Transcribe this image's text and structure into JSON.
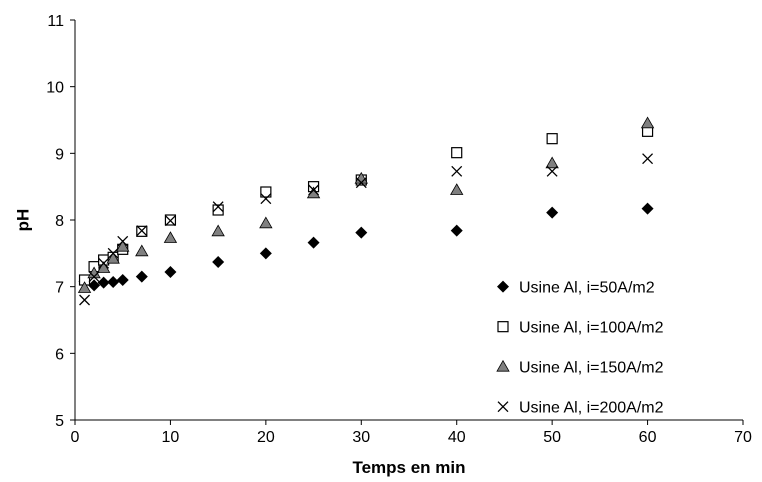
{
  "chart_data": {
    "type": "scatter",
    "title": "",
    "xlabel": "Temps en min",
    "ylabel": "pH",
    "xlim": [
      0,
      70
    ],
    "ylim": [
      5,
      11
    ],
    "xticks": [
      "0",
      "10",
      "20",
      "30",
      "40",
      "50",
      "60",
      "70"
    ],
    "yticks": [
      "5",
      "6",
      "7",
      "8",
      "9",
      "10",
      "11"
    ],
    "grid": false,
    "legend_position": "right",
    "series": [
      {
        "name": "Usine Al, i=50A/m2",
        "marker": "diamond",
        "color": "#000000",
        "points": [
          [
            1,
            7.08
          ],
          [
            2,
            7.02
          ],
          [
            3,
            7.06
          ],
          [
            4,
            7.07
          ],
          [
            5,
            7.1
          ],
          [
            7,
            7.15
          ],
          [
            10,
            7.22
          ],
          [
            15,
            7.37
          ],
          [
            20,
            7.5
          ],
          [
            25,
            7.66
          ],
          [
            30,
            7.81
          ],
          [
            40,
            7.84
          ],
          [
            50,
            8.11
          ],
          [
            60,
            8.17
          ]
        ]
      },
      {
        "name": "Usine Al, i=100A/m2",
        "marker": "square-open",
        "color": "#000000",
        "points": [
          [
            1,
            7.1
          ],
          [
            2,
            7.3
          ],
          [
            3,
            7.4
          ],
          [
            4,
            7.44
          ],
          [
            5,
            7.56
          ],
          [
            7,
            7.83
          ],
          [
            10,
            8.0
          ],
          [
            15,
            8.15
          ],
          [
            20,
            8.42
          ],
          [
            25,
            8.5
          ],
          [
            30,
            8.6
          ],
          [
            40,
            9.01
          ],
          [
            50,
            9.22
          ],
          [
            60,
            9.33
          ]
        ]
      },
      {
        "name": "Usine Al, i=150A/m2",
        "marker": "triangle",
        "color": "#808080",
        "points": [
          [
            1,
            6.98
          ],
          [
            2,
            7.2
          ],
          [
            3,
            7.28
          ],
          [
            4,
            7.42
          ],
          [
            5,
            7.6
          ],
          [
            7,
            7.53
          ],
          [
            10,
            7.73
          ],
          [
            15,
            7.83
          ],
          [
            20,
            7.95
          ],
          [
            25,
            8.4
          ],
          [
            30,
            8.62
          ],
          [
            40,
            8.45
          ],
          [
            50,
            8.85
          ],
          [
            60,
            9.45
          ]
        ]
      },
      {
        "name": "Usine Al, i=200A/m2",
        "marker": "x",
        "color": "#000000",
        "points": [
          [
            1,
            6.8
          ],
          [
            2,
            7.15
          ],
          [
            3,
            7.35
          ],
          [
            4,
            7.5
          ],
          [
            5,
            7.68
          ],
          [
            7,
            7.84
          ],
          [
            10,
            7.99
          ],
          [
            15,
            8.2
          ],
          [
            20,
            8.32
          ],
          [
            25,
            8.45
          ],
          [
            30,
            8.56
          ],
          [
            40,
            8.73
          ],
          [
            50,
            8.73
          ],
          [
            60,
            8.92
          ]
        ]
      }
    ]
  }
}
